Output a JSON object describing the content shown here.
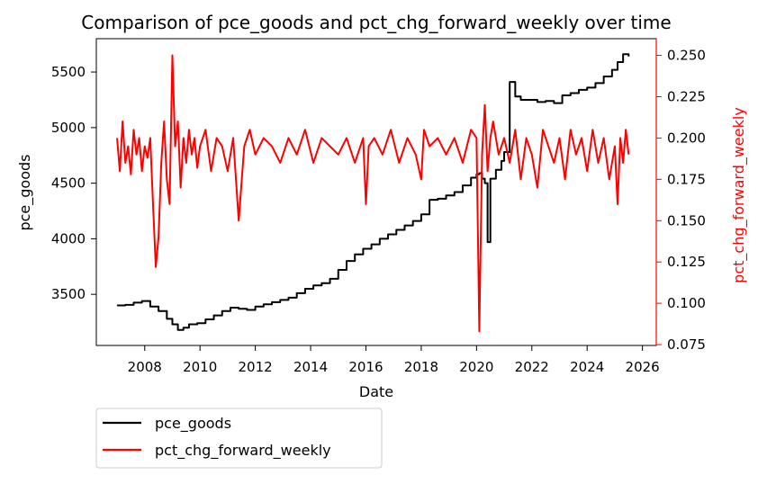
{
  "chart_data": {
    "type": "line",
    "title": "Comparison of pce_goods and pct_chg_forward_weekly over time",
    "xlabel": "Date",
    "ylabel_left": "pce_goods",
    "ylabel_right": "pct_chg_forward_weekly",
    "colors": {
      "left_axis": "#000000",
      "right_axis": "#ff0000",
      "pce_goods": "#000000",
      "pct_chg_forward_weekly": "#ff0000"
    },
    "x_range": [
      2006.25,
      2026.5
    ],
    "y_left_range": [
      3040,
      5800
    ],
    "y_right_range": [
      0.0745,
      0.2601
    ],
    "x_ticks": [
      {
        "value": 2008,
        "label": "2008"
      },
      {
        "value": 2010,
        "label": "2010"
      },
      {
        "value": 2012,
        "label": "2012"
      },
      {
        "value": 2014,
        "label": "2014"
      },
      {
        "value": 2016,
        "label": "2016"
      },
      {
        "value": 2018,
        "label": "2018"
      },
      {
        "value": 2020,
        "label": "2020"
      },
      {
        "value": 2022,
        "label": "2022"
      },
      {
        "value": 2024,
        "label": "2024"
      },
      {
        "value": 2026,
        "label": "2026"
      }
    ],
    "y_left_ticks": [
      {
        "value": 3500,
        "label": "3500"
      },
      {
        "value": 4000,
        "label": "4000"
      },
      {
        "value": 4500,
        "label": "4500"
      },
      {
        "value": 5000,
        "label": "5000"
      },
      {
        "value": 5500,
        "label": "5500"
      }
    ],
    "y_right_ticks": [
      {
        "value": 0.075,
        "label": "0.075"
      },
      {
        "value": 0.1,
        "label": "0.100"
      },
      {
        "value": 0.125,
        "label": "0.125"
      },
      {
        "value": 0.15,
        "label": "0.150"
      },
      {
        "value": 0.175,
        "label": "0.175"
      },
      {
        "value": 0.2,
        "label": "0.200"
      },
      {
        "value": 0.225,
        "label": "0.225"
      },
      {
        "value": 0.25,
        "label": "0.250"
      }
    ],
    "grid": false,
    "legend": {
      "position": "below-left",
      "entries": [
        {
          "label": "pce_goods",
          "color": "#000000"
        },
        {
          "label": "pct_chg_forward_weekly",
          "color": "#ff0000"
        }
      ]
    },
    "series": [
      {
        "name": "pce_goods",
        "axis": "left",
        "step": true,
        "x": [
          2007.0,
          2007.3,
          2007.6,
          2007.9,
          2008.2,
          2008.5,
          2008.8,
          2009.0,
          2009.2,
          2009.4,
          2009.6,
          2009.9,
          2010.2,
          2010.5,
          2010.8,
          2011.1,
          2011.4,
          2011.7,
          2012.0,
          2012.3,
          2012.6,
          2012.9,
          2013.2,
          2013.5,
          2013.8,
          2014.1,
          2014.4,
          2014.7,
          2015.0,
          2015.3,
          2015.6,
          2015.9,
          2016.2,
          2016.5,
          2016.8,
          2017.1,
          2017.4,
          2017.7,
          2018.0,
          2018.3,
          2018.6,
          2018.9,
          2019.2,
          2019.5,
          2019.8,
          2020.0,
          2020.1,
          2020.2,
          2020.3,
          2020.4,
          2020.5,
          2020.7,
          2020.9,
          2021.0,
          2021.2,
          2021.4,
          2021.6,
          2021.9,
          2022.2,
          2022.5,
          2022.8,
          2023.1,
          2023.4,
          2023.7,
          2024.0,
          2024.3,
          2024.6,
          2024.9,
          2025.1,
          2025.3,
          2025.5
        ],
        "y": [
          3400,
          3405,
          3425,
          3440,
          3390,
          3350,
          3280,
          3230,
          3180,
          3200,
          3230,
          3240,
          3275,
          3310,
          3350,
          3380,
          3370,
          3360,
          3390,
          3410,
          3430,
          3450,
          3470,
          3510,
          3550,
          3580,
          3600,
          3640,
          3720,
          3800,
          3860,
          3910,
          3950,
          4000,
          4040,
          4080,
          4120,
          4160,
          4220,
          4350,
          4360,
          4390,
          4420,
          4480,
          4550,
          4580,
          4590,
          4540,
          4500,
          3970,
          4540,
          4620,
          4700,
          4780,
          5410,
          5280,
          5250,
          5250,
          5230,
          5240,
          5220,
          5290,
          5310,
          5340,
          5360,
          5400,
          5460,
          5520,
          5590,
          5660,
          5640
        ]
      },
      {
        "name": "pct_chg_forward_weekly",
        "axis": "right",
        "x": [
          2007.0,
          2007.1,
          2007.2,
          2007.3,
          2007.4,
          2007.5,
          2007.6,
          2007.7,
          2007.8,
          2007.9,
          2008.0,
          2008.1,
          2008.2,
          2008.3,
          2008.4,
          2008.5,
          2008.6,
          2008.7,
          2008.8,
          2008.9,
          2009.0,
          2009.1,
          2009.2,
          2009.3,
          2009.4,
          2009.5,
          2009.6,
          2009.7,
          2009.8,
          2009.9,
          2010.0,
          2010.2,
          2010.4,
          2010.6,
          2010.8,
          2011.0,
          2011.2,
          2011.4,
          2011.6,
          2011.8,
          2012.0,
          2012.3,
          2012.6,
          2012.9,
          2013.2,
          2013.5,
          2013.8,
          2014.1,
          2014.4,
          2014.7,
          2015.0,
          2015.3,
          2015.6,
          2015.9,
          2016.0,
          2016.1,
          2016.3,
          2016.6,
          2016.9,
          2017.2,
          2017.5,
          2017.8,
          2018.0,
          2018.1,
          2018.3,
          2018.6,
          2018.9,
          2019.2,
          2019.5,
          2019.8,
          2020.0,
          2020.1,
          2020.2,
          2020.3,
          2020.4,
          2020.5,
          2020.6,
          2020.8,
          2021.0,
          2021.2,
          2021.4,
          2021.6,
          2021.8,
          2022.0,
          2022.2,
          2022.4,
          2022.6,
          2022.8,
          2023.0,
          2023.2,
          2023.4,
          2023.6,
          2023.8,
          2024.0,
          2024.2,
          2024.4,
          2024.6,
          2024.8,
          2025.0,
          2025.1,
          2025.2,
          2025.3,
          2025.4,
          2025.5
        ],
        "y": [
          0.2,
          0.18,
          0.21,
          0.185,
          0.195,
          0.178,
          0.205,
          0.19,
          0.2,
          0.18,
          0.195,
          0.188,
          0.2,
          0.16,
          0.122,
          0.14,
          0.185,
          0.21,
          0.175,
          0.16,
          0.25,
          0.195,
          0.21,
          0.17,
          0.2,
          0.185,
          0.205,
          0.19,
          0.2,
          0.182,
          0.195,
          0.205,
          0.18,
          0.2,
          0.195,
          0.18,
          0.2,
          0.15,
          0.195,
          0.205,
          0.19,
          0.2,
          0.195,
          0.185,
          0.2,
          0.19,
          0.205,
          0.185,
          0.2,
          0.195,
          0.19,
          0.2,
          0.185,
          0.2,
          0.16,
          0.195,
          0.2,
          0.19,
          0.205,
          0.185,
          0.2,
          0.19,
          0.175,
          0.205,
          0.195,
          0.2,
          0.19,
          0.2,
          0.185,
          0.205,
          0.2,
          0.083,
          0.19,
          0.22,
          0.18,
          0.2,
          0.21,
          0.19,
          0.2,
          0.185,
          0.205,
          0.175,
          0.2,
          0.19,
          0.17,
          0.205,
          0.195,
          0.185,
          0.2,
          0.175,
          0.205,
          0.19,
          0.2,
          0.18,
          0.205,
          0.185,
          0.2,
          0.175,
          0.195,
          0.16,
          0.2,
          0.185,
          0.205,
          0.19
        ]
      }
    ]
  }
}
